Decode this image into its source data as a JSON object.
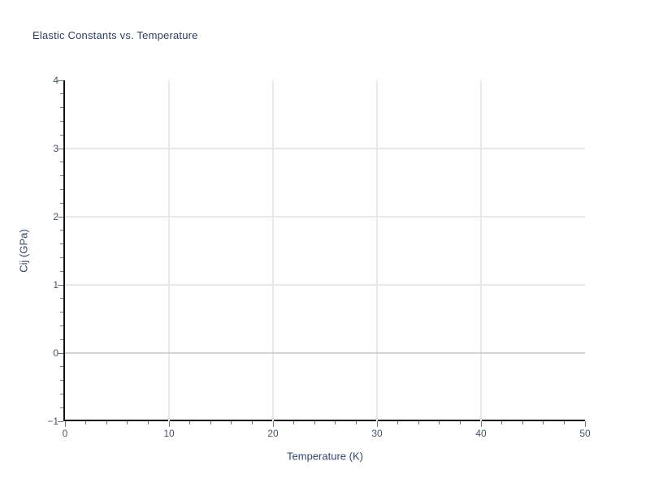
{
  "window": {
    "background": "#ffffff"
  },
  "chart_data": {
    "type": "scatter",
    "title": "Elastic Constants vs. Temperature",
    "xlabel": "Temperature (K)",
    "ylabel": "Cij (GPa)",
    "xlim": [
      0,
      50
    ],
    "ylim": [
      -1,
      4
    ],
    "x_major_ticks": [
      0,
      10,
      20,
      30,
      40,
      50
    ],
    "x_tick_labels": [
      "0",
      "10",
      "20",
      "30",
      "40",
      "50"
    ],
    "x_minor_tick_step": 2,
    "y_major_ticks": [
      -1,
      0,
      1,
      2,
      3,
      4
    ],
    "y_tick_labels": [
      "−1",
      "0",
      "1",
      "2",
      "3",
      "4"
    ],
    "y_minor_tick_step": 0.2,
    "x_gridlines": [
      10,
      20,
      30,
      40
    ],
    "y_gridlines": [
      1,
      2,
      3
    ],
    "zero_line": 0,
    "grid": "on",
    "legend": "none",
    "series": [],
    "colors": {
      "title": "#2e3f63",
      "axis_label": "#33456e",
      "tick_label": "#47536f",
      "gridline": "#e8e8e8",
      "zero_line": "#d3d3d3",
      "spine": "#111111",
      "tick_mark": "#777777",
      "background": "#ffffff"
    }
  }
}
